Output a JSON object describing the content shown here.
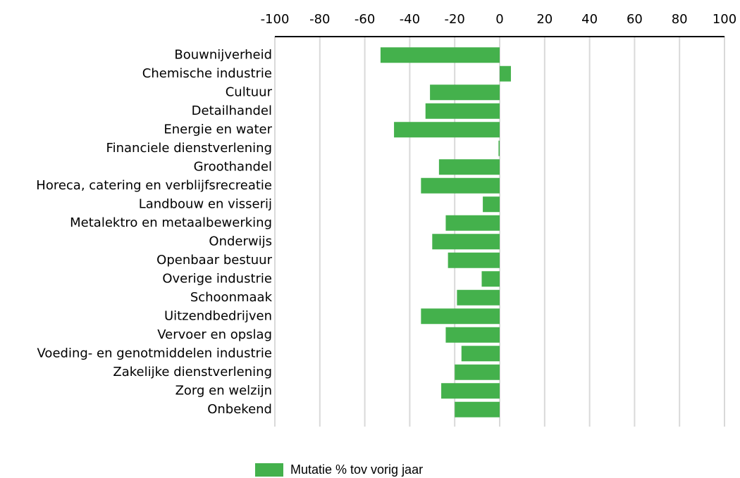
{
  "chart_data": {
    "type": "hbar",
    "categories": [
      "Bouwnijverheid",
      "Chemische industrie",
      "Cultuur",
      "Detailhandel",
      "Energie en water",
      "Financiele dienstverlening",
      "Groothandel",
      "Horeca, catering en verblijfsrecreatie",
      "Landbouw en visserij",
      "Metalektro en metaalbewerking",
      "Onderwijs",
      "Openbaar bestuur",
      "Overige industrie",
      "Schoonmaak",
      "Uitzendbedrijven",
      "Vervoer en opslag",
      "Voeding- en genotmiddelen industrie",
      "Zakelijke dienstverlening",
      "Zorg en welzijn",
      "Onbekend"
    ],
    "series": [
      {
        "name": "Mutatie % tov vorig jaar",
        "color": "#44b14c",
        "values": [
          -53,
          5,
          -31,
          -33,
          -47,
          -0.5,
          -27,
          -35,
          -7.5,
          -24,
          -30,
          -23,
          -8,
          -19,
          -35,
          -24,
          -17,
          -20,
          -26,
          -20
        ]
      }
    ],
    "xlim": [
      -100,
      100
    ],
    "xticks": [
      -100,
      -80,
      -60,
      -40,
      -20,
      0,
      20,
      40,
      60,
      80,
      100
    ],
    "grid": true,
    "legend": "bottom"
  }
}
